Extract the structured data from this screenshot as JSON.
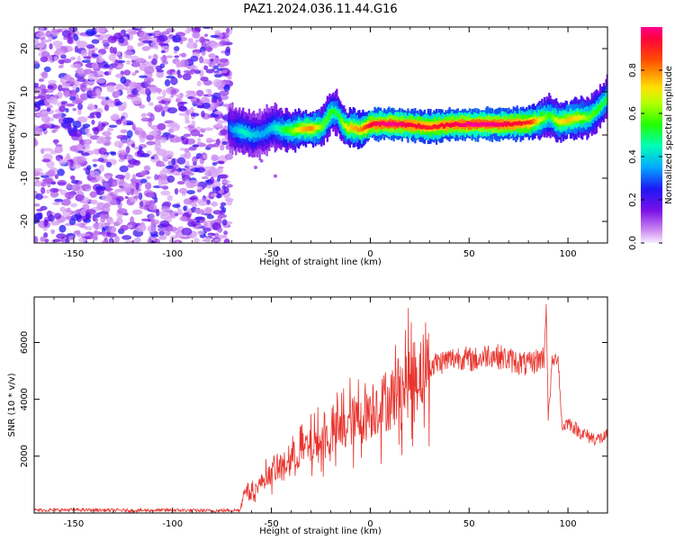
{
  "title": "PAZ1.2024.036.11.44.G16",
  "chart_data": [
    {
      "type": "heatmap",
      "xlabel": "Height of straight line (km)",
      "ylabel": "Frequency (Hz)",
      "xlim": [
        -170,
        120
      ],
      "ylim": [
        -25,
        25
      ],
      "xticks": [
        -150,
        -100,
        -50,
        0,
        50,
        100
      ],
      "yticks": [
        -20,
        -10,
        0,
        10,
        20
      ],
      "colorbar": {
        "label": "Normalized spectral amplitude",
        "range": [
          0.0,
          1.0
        ],
        "ticks": [
          "0.0",
          "0.2",
          "0.4",
          "0.6",
          "0.8"
        ],
        "colormap": "gist_rainbow-like (white/light purple at 0, red at 1)"
      },
      "noise_region": {
        "x_range": [
          -170,
          -71
        ],
        "frequency_range": [
          -25,
          25
        ],
        "amplitude": "low (0.05-0.35)"
      },
      "peak_track": {
        "x": [
          -72,
          -70,
          -65,
          -60,
          -55,
          -50,
          -45,
          -40,
          -35,
          -30,
          -25,
          -20,
          -17,
          -15,
          -12,
          -10,
          -5,
          0,
          10,
          20,
          30,
          40,
          50,
          60,
          70,
          80,
          85,
          90,
          95,
          100,
          105,
          110,
          115,
          120
        ],
        "frequency": [
          2,
          1.2,
          0.8,
          0,
          0.3,
          1.8,
          1.2,
          1.0,
          1.5,
          1.5,
          1.8,
          5.5,
          5,
          3,
          1.5,
          1.8,
          1.2,
          2.5,
          2.6,
          2.3,
          1.8,
          2.4,
          2.5,
          2.5,
          2.5,
          2.8,
          3.5,
          4.5,
          3,
          3.5,
          4,
          4,
          6,
          9
        ],
        "amplitude": [
          0.3,
          0.35,
          0.45,
          0.4,
          0.35,
          0.4,
          0.5,
          0.6,
          0.75,
          0.8,
          0.6,
          0.55,
          0.5,
          0.6,
          0.7,
          0.75,
          0.8,
          0.95,
          1.0,
          0.95,
          0.9,
          0.95,
          1.0,
          1.0,
          0.95,
          0.9,
          0.7,
          0.55,
          0.7,
          0.75,
          0.7,
          0.6,
          0.55,
          0.5
        ]
      }
    },
    {
      "type": "line",
      "xlabel": "Height of straight line (km)",
      "ylabel": "SNR (10 * v/v)",
      "xlim": [
        -170,
        120
      ],
      "ylim": [
        0,
        7600
      ],
      "xticks": [
        -150,
        -100,
        -50,
        0,
        50,
        100
      ],
      "yticks": [
        2000,
        4000,
        6000
      ],
      "series": [
        {
          "color": "#e8352e",
          "x": [
            -170,
            -150,
            -120,
            -100,
            -80,
            -66,
            -63,
            -60,
            -55,
            -50,
            -45,
            -40,
            -35,
            -30,
            -25,
            -20,
            -15,
            -10,
            -5,
            0,
            5,
            10,
            15,
            20,
            25,
            30,
            35,
            40,
            45,
            50,
            55,
            60,
            65,
            70,
            75,
            80,
            85,
            88,
            89,
            90,
            92,
            95,
            97,
            100,
            105,
            110,
            115,
            120
          ],
          "values": [
            100,
            110,
            90,
            100,
            80,
            100,
            900,
            700,
            1100,
            1400,
            1600,
            1900,
            2200,
            2300,
            2500,
            2700,
            2900,
            3200,
            3300,
            3600,
            3800,
            4000,
            4300,
            4700,
            5000,
            5200,
            5300,
            5400,
            5500,
            5400,
            5400,
            5600,
            5500,
            5400,
            5300,
            5200,
            5400,
            5500,
            7400,
            3300,
            5300,
            5500,
            3000,
            3200,
            2900,
            2700,
            2600,
            2700
          ]
        }
      ],
      "annotations": [
        "spike near x=89 reaching ~7400"
      ]
    }
  ]
}
